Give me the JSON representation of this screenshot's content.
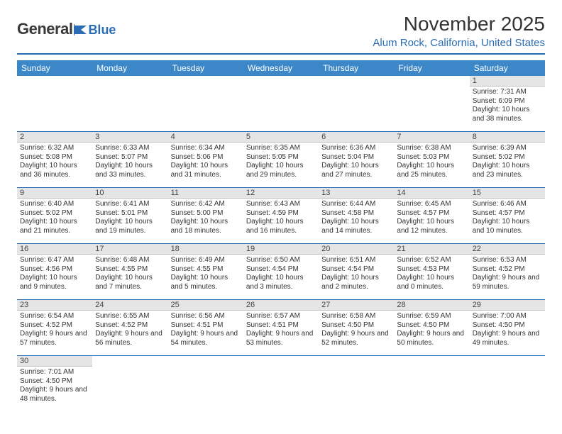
{
  "logo": {
    "word1": "General",
    "word2": "Blue"
  },
  "title": "November 2025",
  "location": "Alum Rock, California, United States",
  "colors": {
    "header_bg": "#3b87c8",
    "accent": "#2a6db4",
    "daynum_bg": "#e5e5e5",
    "text": "#333333"
  },
  "weekdays": [
    "Sunday",
    "Monday",
    "Tuesday",
    "Wednesday",
    "Thursday",
    "Friday",
    "Saturday"
  ],
  "weeks": [
    [
      null,
      null,
      null,
      null,
      null,
      null,
      {
        "n": "1",
        "sr": "Sunrise: 7:31 AM",
        "ss": "Sunset: 6:09 PM",
        "dl": "Daylight: 10 hours and 38 minutes."
      }
    ],
    [
      {
        "n": "2",
        "sr": "Sunrise: 6:32 AM",
        "ss": "Sunset: 5:08 PM",
        "dl": "Daylight: 10 hours and 36 minutes."
      },
      {
        "n": "3",
        "sr": "Sunrise: 6:33 AM",
        "ss": "Sunset: 5:07 PM",
        "dl": "Daylight: 10 hours and 33 minutes."
      },
      {
        "n": "4",
        "sr": "Sunrise: 6:34 AM",
        "ss": "Sunset: 5:06 PM",
        "dl": "Daylight: 10 hours and 31 minutes."
      },
      {
        "n": "5",
        "sr": "Sunrise: 6:35 AM",
        "ss": "Sunset: 5:05 PM",
        "dl": "Daylight: 10 hours and 29 minutes."
      },
      {
        "n": "6",
        "sr": "Sunrise: 6:36 AM",
        "ss": "Sunset: 5:04 PM",
        "dl": "Daylight: 10 hours and 27 minutes."
      },
      {
        "n": "7",
        "sr": "Sunrise: 6:38 AM",
        "ss": "Sunset: 5:03 PM",
        "dl": "Daylight: 10 hours and 25 minutes."
      },
      {
        "n": "8",
        "sr": "Sunrise: 6:39 AM",
        "ss": "Sunset: 5:02 PM",
        "dl": "Daylight: 10 hours and 23 minutes."
      }
    ],
    [
      {
        "n": "9",
        "sr": "Sunrise: 6:40 AM",
        "ss": "Sunset: 5:02 PM",
        "dl": "Daylight: 10 hours and 21 minutes."
      },
      {
        "n": "10",
        "sr": "Sunrise: 6:41 AM",
        "ss": "Sunset: 5:01 PM",
        "dl": "Daylight: 10 hours and 19 minutes."
      },
      {
        "n": "11",
        "sr": "Sunrise: 6:42 AM",
        "ss": "Sunset: 5:00 PM",
        "dl": "Daylight: 10 hours and 18 minutes."
      },
      {
        "n": "12",
        "sr": "Sunrise: 6:43 AM",
        "ss": "Sunset: 4:59 PM",
        "dl": "Daylight: 10 hours and 16 minutes."
      },
      {
        "n": "13",
        "sr": "Sunrise: 6:44 AM",
        "ss": "Sunset: 4:58 PM",
        "dl": "Daylight: 10 hours and 14 minutes."
      },
      {
        "n": "14",
        "sr": "Sunrise: 6:45 AM",
        "ss": "Sunset: 4:57 PM",
        "dl": "Daylight: 10 hours and 12 minutes."
      },
      {
        "n": "15",
        "sr": "Sunrise: 6:46 AM",
        "ss": "Sunset: 4:57 PM",
        "dl": "Daylight: 10 hours and 10 minutes."
      }
    ],
    [
      {
        "n": "16",
        "sr": "Sunrise: 6:47 AM",
        "ss": "Sunset: 4:56 PM",
        "dl": "Daylight: 10 hours and 9 minutes."
      },
      {
        "n": "17",
        "sr": "Sunrise: 6:48 AM",
        "ss": "Sunset: 4:55 PM",
        "dl": "Daylight: 10 hours and 7 minutes."
      },
      {
        "n": "18",
        "sr": "Sunrise: 6:49 AM",
        "ss": "Sunset: 4:55 PM",
        "dl": "Daylight: 10 hours and 5 minutes."
      },
      {
        "n": "19",
        "sr": "Sunrise: 6:50 AM",
        "ss": "Sunset: 4:54 PM",
        "dl": "Daylight: 10 hours and 3 minutes."
      },
      {
        "n": "20",
        "sr": "Sunrise: 6:51 AM",
        "ss": "Sunset: 4:54 PM",
        "dl": "Daylight: 10 hours and 2 minutes."
      },
      {
        "n": "21",
        "sr": "Sunrise: 6:52 AM",
        "ss": "Sunset: 4:53 PM",
        "dl": "Daylight: 10 hours and 0 minutes."
      },
      {
        "n": "22",
        "sr": "Sunrise: 6:53 AM",
        "ss": "Sunset: 4:52 PM",
        "dl": "Daylight: 9 hours and 59 minutes."
      }
    ],
    [
      {
        "n": "23",
        "sr": "Sunrise: 6:54 AM",
        "ss": "Sunset: 4:52 PM",
        "dl": "Daylight: 9 hours and 57 minutes."
      },
      {
        "n": "24",
        "sr": "Sunrise: 6:55 AM",
        "ss": "Sunset: 4:52 PM",
        "dl": "Daylight: 9 hours and 56 minutes."
      },
      {
        "n": "25",
        "sr": "Sunrise: 6:56 AM",
        "ss": "Sunset: 4:51 PM",
        "dl": "Daylight: 9 hours and 54 minutes."
      },
      {
        "n": "26",
        "sr": "Sunrise: 6:57 AM",
        "ss": "Sunset: 4:51 PM",
        "dl": "Daylight: 9 hours and 53 minutes."
      },
      {
        "n": "27",
        "sr": "Sunrise: 6:58 AM",
        "ss": "Sunset: 4:50 PM",
        "dl": "Daylight: 9 hours and 52 minutes."
      },
      {
        "n": "28",
        "sr": "Sunrise: 6:59 AM",
        "ss": "Sunset: 4:50 PM",
        "dl": "Daylight: 9 hours and 50 minutes."
      },
      {
        "n": "29",
        "sr": "Sunrise: 7:00 AM",
        "ss": "Sunset: 4:50 PM",
        "dl": "Daylight: 9 hours and 49 minutes."
      }
    ],
    [
      {
        "n": "30",
        "sr": "Sunrise: 7:01 AM",
        "ss": "Sunset: 4:50 PM",
        "dl": "Daylight: 9 hours and 48 minutes."
      },
      null,
      null,
      null,
      null,
      null,
      null
    ]
  ]
}
